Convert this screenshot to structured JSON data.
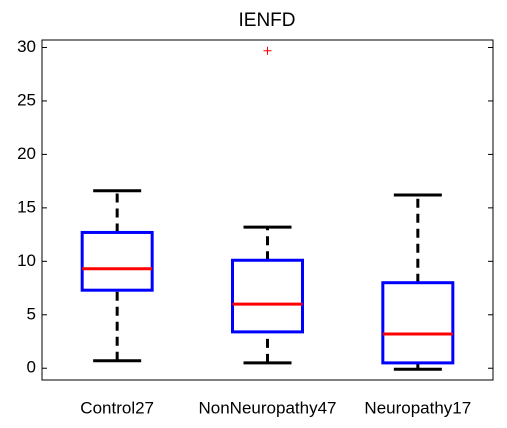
{
  "chart_data": {
    "type": "box",
    "title": "IENFD",
    "categories": [
      "Control27",
      "NonNeuropathy47",
      "Neuropathy17"
    ],
    "boxes": [
      {
        "min": 0.7,
        "q1": 7.3,
        "median": 9.3,
        "q3": 12.7,
        "max": 16.6
      },
      {
        "min": 0.5,
        "q1": 3.4,
        "median": 6.0,
        "q3": 10.1,
        "max": 13.2,
        "outliers": [
          29.7
        ]
      },
      {
        "min": -0.1,
        "q1": 0.5,
        "median": 3.2,
        "q3": 8.0,
        "max": 16.2
      }
    ],
    "box_color": "#0000ff",
    "median_color": "#ff0000",
    "whisker_color": "#000000",
    "outlier_color": "#ff0000",
    "ylim": [
      -1.1,
      30.7
    ],
    "yticks": [
      0,
      5,
      10,
      15,
      20,
      25,
      30
    ]
  }
}
